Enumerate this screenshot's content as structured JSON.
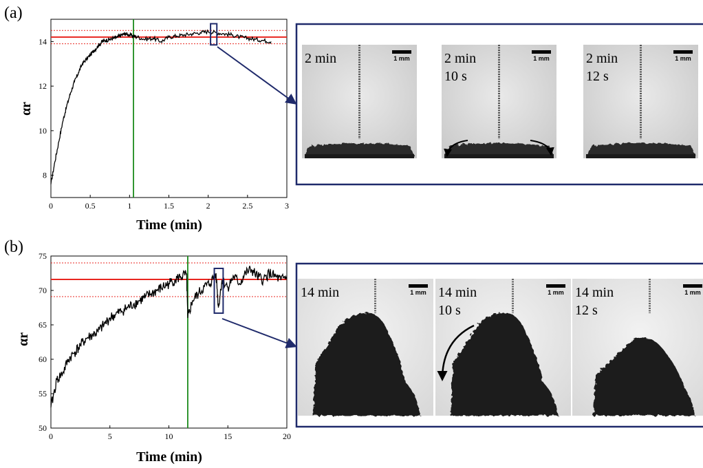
{
  "panels": [
    {
      "label": "(a)",
      "frames": [
        {
          "lines": [
            "2 min",
            ""
          ],
          "scale": "1 mm"
        },
        {
          "lines": [
            "2 min",
            "10 s"
          ],
          "scale": "1 mm"
        },
        {
          "lines": [
            "2 min",
            "12 s"
          ],
          "scale": "1 mm"
        }
      ]
    },
    {
      "label": "(b)",
      "frames": [
        {
          "lines": [
            "14 min",
            ""
          ],
          "scale": "1 mm"
        },
        {
          "lines": [
            "14 min",
            "10 s"
          ],
          "scale": "1 mm"
        },
        {
          "lines": [
            "14 min",
            "12 s"
          ],
          "scale": "1 mm"
        }
      ]
    }
  ],
  "colors": {
    "series": "#000000",
    "mean": "#e8251f",
    "vline": "#1a8a1a",
    "box": "#1f2a6b"
  },
  "chart_data": [
    {
      "type": "line",
      "xlabel": "Time (min)",
      "ylabel": "αr",
      "xlim": [
        0,
        3
      ],
      "ylim": [
        7,
        15
      ],
      "xticks": [
        "0",
        "0.5",
        "1",
        "1.5",
        "2",
        "2.5",
        "3"
      ],
      "yticks": [
        "8",
        "10",
        "12",
        "14"
      ],
      "grid": false,
      "series": [
        {
          "x": [
            0,
            0.05,
            0.1,
            0.15,
            0.2,
            0.25,
            0.3,
            0.35,
            0.4,
            0.45,
            0.5,
            0.55,
            0.6,
            0.65,
            0.7,
            0.75,
            0.8,
            0.85,
            0.9,
            0.95,
            1.0,
            1.05,
            1.1,
            1.2,
            1.3,
            1.4,
            1.5,
            1.6,
            1.7,
            1.8,
            1.9,
            2.0,
            2.1,
            2.2,
            2.3,
            2.4,
            2.5,
            2.6,
            2.7,
            2.8
          ],
          "values": [
            7.6,
            8.6,
            9.5,
            10.4,
            11.1,
            11.7,
            12.2,
            12.6,
            13.0,
            13.2,
            13.4,
            13.6,
            13.8,
            14.0,
            14.05,
            14.1,
            14.15,
            14.2,
            14.3,
            14.35,
            14.3,
            14.25,
            14.2,
            14.1,
            14.15,
            14.0,
            14.2,
            14.25,
            14.3,
            14.35,
            14.4,
            14.45,
            14.4,
            14.35,
            14.3,
            14.2,
            14.15,
            14.1,
            14.05,
            14.0
          ]
        }
      ],
      "mean_line": 14.2,
      "band": [
        13.9,
        14.5
      ],
      "vline": 1.05,
      "highlight": {
        "x": [
          2.03,
          2.11
        ],
        "y": [
          13.85,
          14.8
        ]
      }
    },
    {
      "type": "line",
      "xlabel": "Time (min)",
      "ylabel": "αr",
      "xlim": [
        0,
        20
      ],
      "ylim": [
        50,
        75
      ],
      "xticks": [
        "0",
        "5",
        "10",
        "15",
        "20"
      ],
      "yticks": [
        "50",
        "55",
        "60",
        "65",
        "70",
        "75"
      ],
      "grid": false,
      "series": [
        {
          "x": [
            0,
            0.5,
            1,
            1.5,
            2,
            2.5,
            3,
            3.5,
            4,
            4.5,
            5,
            5.5,
            6,
            6.5,
            7,
            7.5,
            8,
            8.5,
            9,
            9.5,
            10,
            10.5,
            11,
            11.5,
            11.6,
            12,
            12.5,
            13,
            13.5,
            14,
            14.2,
            14.5,
            15,
            15.5,
            16,
            16.5,
            17,
            17.5,
            18,
            18.5,
            19,
            19.5,
            20
          ],
          "values": [
            53,
            57,
            58,
            60,
            61,
            62,
            63,
            63.5,
            64,
            65,
            66,
            66.5,
            67,
            67.5,
            68,
            68.5,
            69,
            69.5,
            70,
            70.5,
            71,
            71.5,
            72,
            72.3,
            66,
            68.5,
            69.5,
            70.5,
            71,
            72.5,
            67.5,
            71.5,
            70.5,
            72,
            71,
            72.5,
            73,
            72,
            71.5,
            72.5,
            72,
            71.5,
            72
          ]
        }
      ],
      "mean_line": 71.6,
      "band": [
        69.1,
        74.0
      ],
      "vline": 11.6,
      "highlight": {
        "x": [
          13.85,
          14.6
        ],
        "y": [
          66.7,
          73.2
        ]
      }
    }
  ]
}
